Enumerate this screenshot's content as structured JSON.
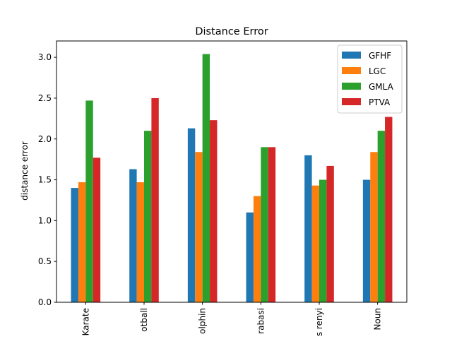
{
  "chart_data": {
    "type": "bar",
    "title": "Distance Error",
    "xlabel": "",
    "ylabel": "distance error",
    "ylim": [
      0,
      3.2
    ],
    "yticks": [
      0.0,
      0.5,
      1.0,
      1.5,
      2.0,
      2.5,
      3.0
    ],
    "ytick_labels": [
      "0.0",
      "0.5",
      "1.0",
      "1.5",
      "2.0",
      "2.5",
      "3.0"
    ],
    "categories": [
      "Karate",
      "otball",
      "olphin",
      "rabasi",
      "s renyi",
      "Noun"
    ],
    "grid": false,
    "legend_position": "top-right",
    "series": [
      {
        "name": "GFHF",
        "color": "#1f77b4",
        "values": [
          1.4,
          1.63,
          2.13,
          1.1,
          1.8,
          1.5
        ]
      },
      {
        "name": "LGC",
        "color": "#ff7f0e",
        "values": [
          1.47,
          1.47,
          1.84,
          1.3,
          1.43,
          1.84
        ]
      },
      {
        "name": "GMLA",
        "color": "#2ca02c",
        "values": [
          2.47,
          2.1,
          3.04,
          1.9,
          1.5,
          2.1
        ]
      },
      {
        "name": "PTVA",
        "color": "#d62728",
        "values": [
          1.77,
          2.5,
          2.23,
          1.9,
          1.67,
          2.27
        ]
      }
    ]
  }
}
